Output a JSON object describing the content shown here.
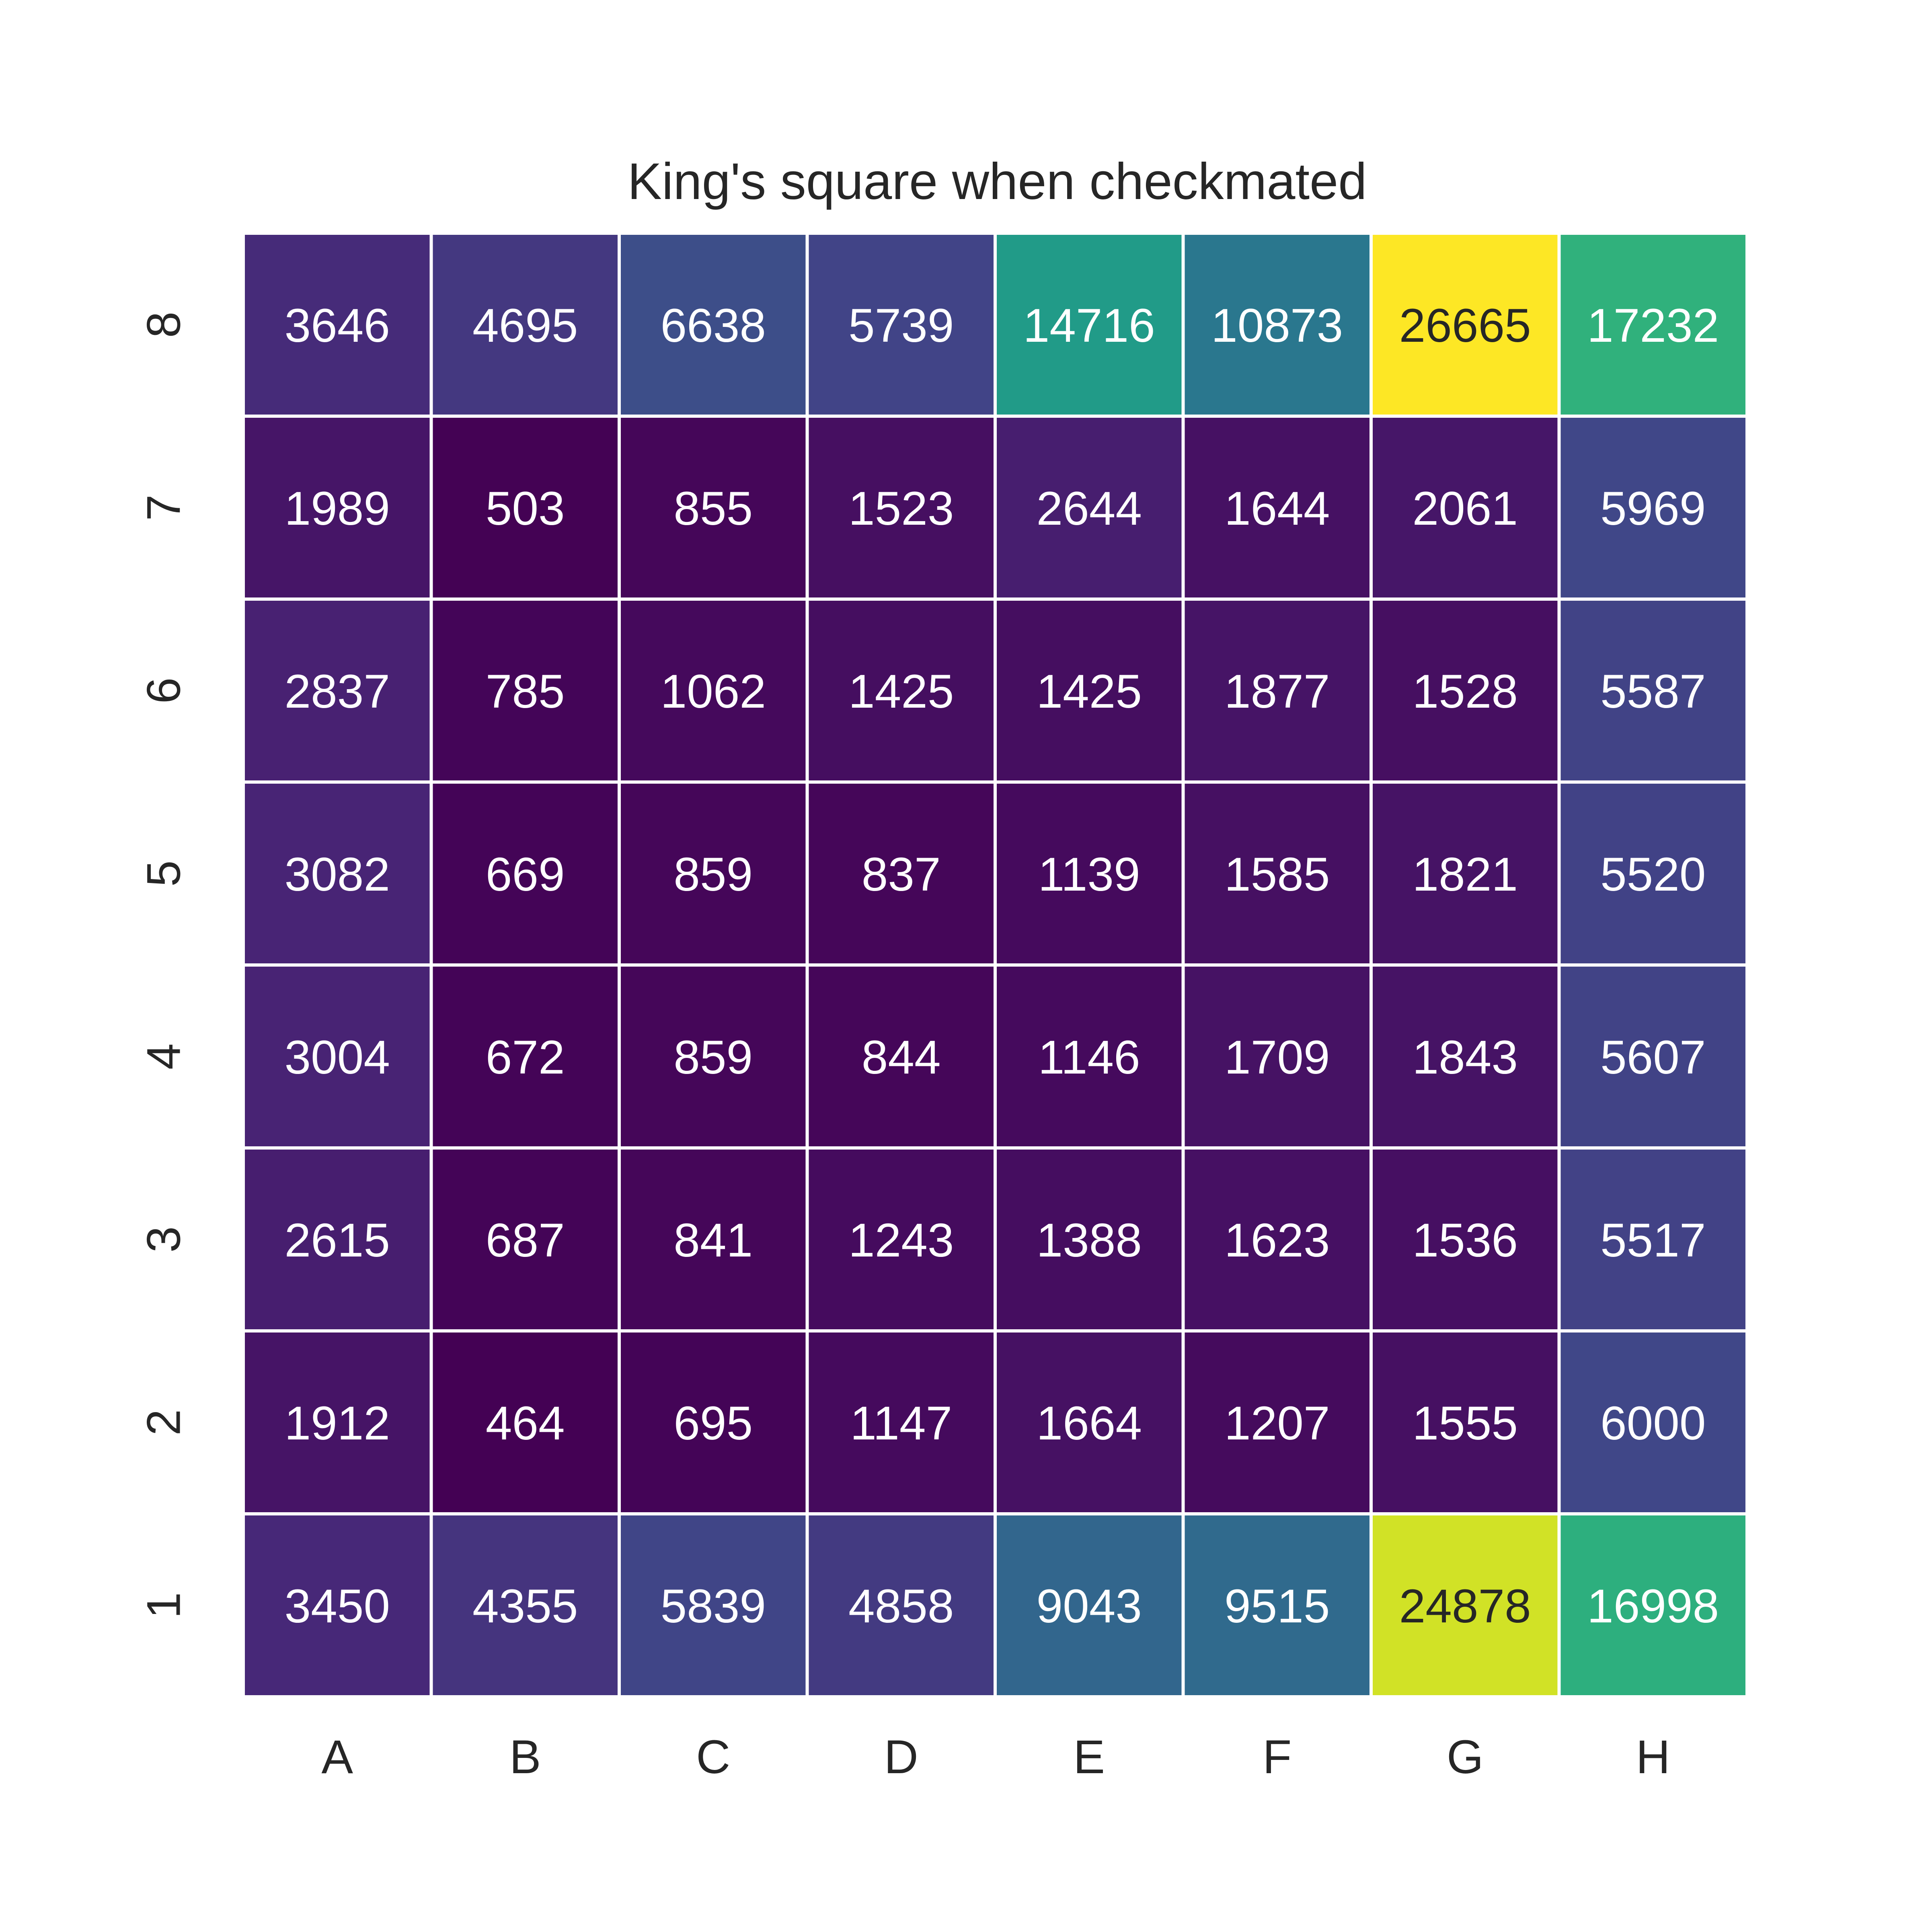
{
  "chart_data": {
    "type": "heatmap",
    "title": "King's square when checkmated",
    "xlabel": "",
    "ylabel": "",
    "x_categories": [
      "A",
      "B",
      "C",
      "D",
      "E",
      "F",
      "G",
      "H"
    ],
    "y_categories": [
      "8",
      "7",
      "6",
      "5",
      "4",
      "3",
      "2",
      "1"
    ],
    "values": [
      [
        3646,
        4695,
        6638,
        5739,
        14716,
        10873,
        26665,
        17232
      ],
      [
        1989,
        503,
        855,
        1523,
        2644,
        1644,
        2061,
        5969
      ],
      [
        2837,
        785,
        1062,
        1425,
        1425,
        1877,
        1528,
        5587
      ],
      [
        3082,
        669,
        859,
        837,
        1139,
        1585,
        1821,
        5520
      ],
      [
        3004,
        672,
        859,
        844,
        1146,
        1709,
        1843,
        5607
      ],
      [
        2615,
        687,
        841,
        1243,
        1388,
        1623,
        1536,
        5517
      ],
      [
        1912,
        464,
        695,
        1147,
        1664,
        1207,
        1555,
        6000
      ],
      [
        3450,
        4355,
        5839,
        4858,
        9043,
        9515,
        24878,
        16998
      ]
    ],
    "colormap": "viridis",
    "value_range": [
      464,
      26665
    ],
    "annotations": true,
    "colorbar": false,
    "grid_line_color": "#ffffff",
    "label_color_light": "#ffffff",
    "label_color_dark": "#262626",
    "text_color": "#262626"
  }
}
